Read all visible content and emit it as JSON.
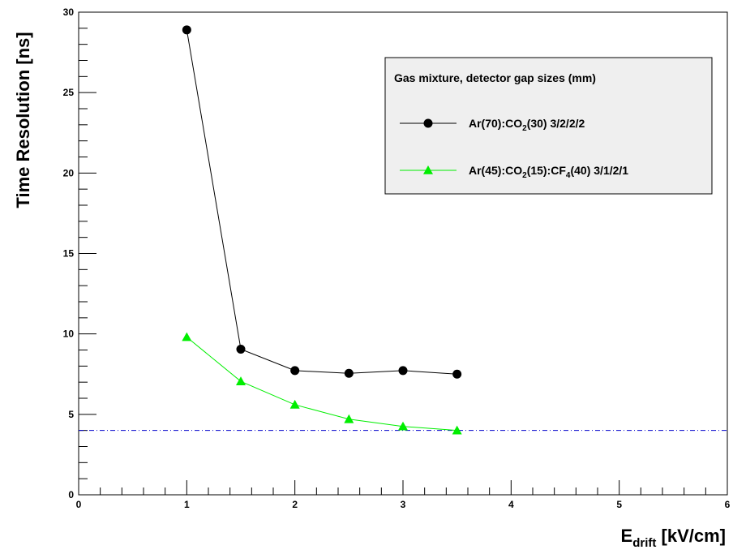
{
  "chart_data": {
    "type": "line",
    "title": "",
    "xlabel": {
      "main": "E",
      "sub": "drift",
      "rest": " [kV/cm]"
    },
    "ylabel": "Time Resolution [ns]",
    "xlim": [
      0,
      6
    ],
    "ylim": [
      0,
      30
    ],
    "x_ticks": [
      0,
      1,
      2,
      3,
      4,
      5,
      6
    ],
    "y_ticks": [
      0,
      5,
      10,
      15,
      20,
      25,
      30
    ],
    "grid": false,
    "legend_position": "top-right",
    "legend_title": "Gas mixture, detector gap sizes (mm)",
    "reference_line": {
      "y": 4.0,
      "color": "#0000cc",
      "style": "dash-dot"
    },
    "series": [
      {
        "name": "Ar(70):CO2(30) 3/2/2/2",
        "label_parts": [
          {
            "t": "Ar(70):CO"
          },
          {
            "t": "2",
            "sub": true
          },
          {
            "t": "(30) 3/2/2/2"
          }
        ],
        "color": "#000000",
        "marker": "circle",
        "x": [
          1.0,
          1.5,
          2.0,
          2.5,
          3.0,
          3.5
        ],
        "y": [
          28.9,
          9.05,
          7.72,
          7.55,
          7.72,
          7.5
        ]
      },
      {
        "name": "Ar(45):CO2(15):CF4(40) 3/1/2/1",
        "label_parts": [
          {
            "t": "Ar(45):CO"
          },
          {
            "t": "2",
            "sub": true
          },
          {
            "t": "(15):CF"
          },
          {
            "t": "4",
            "sub": true
          },
          {
            "t": "(40) 3/1/2/1"
          }
        ],
        "color": "#00ee00",
        "marker": "triangle",
        "x": [
          1.0,
          1.5,
          2.0,
          2.5,
          3.0,
          3.5
        ],
        "y": [
          9.8,
          7.05,
          5.6,
          4.7,
          4.25,
          4.0
        ]
      }
    ]
  }
}
